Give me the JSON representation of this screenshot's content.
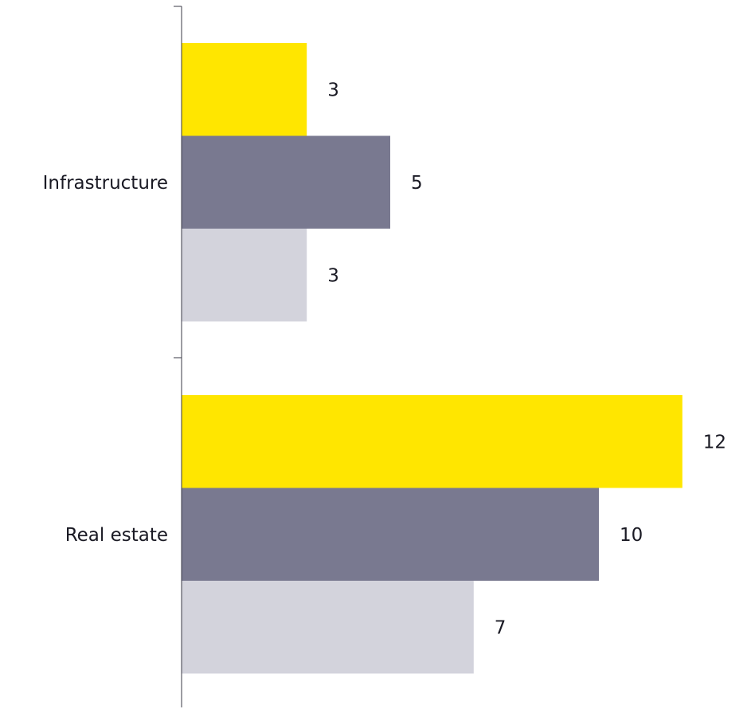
{
  "chart_data": {
    "type": "bar",
    "orientation": "horizontal",
    "categories": [
      "Infrastructure",
      "Real estate"
    ],
    "series": [
      {
        "color": "#FFE600",
        "values": [
          3,
          12
        ]
      },
      {
        "color": "#797990",
        "values": [
          5,
          10
        ]
      },
      {
        "color": "#D3D3DC",
        "values": [
          3,
          7
        ]
      }
    ],
    "value_labels_shown": true,
    "x_axis_visible": false,
    "gridlines": false,
    "legend": "none"
  }
}
